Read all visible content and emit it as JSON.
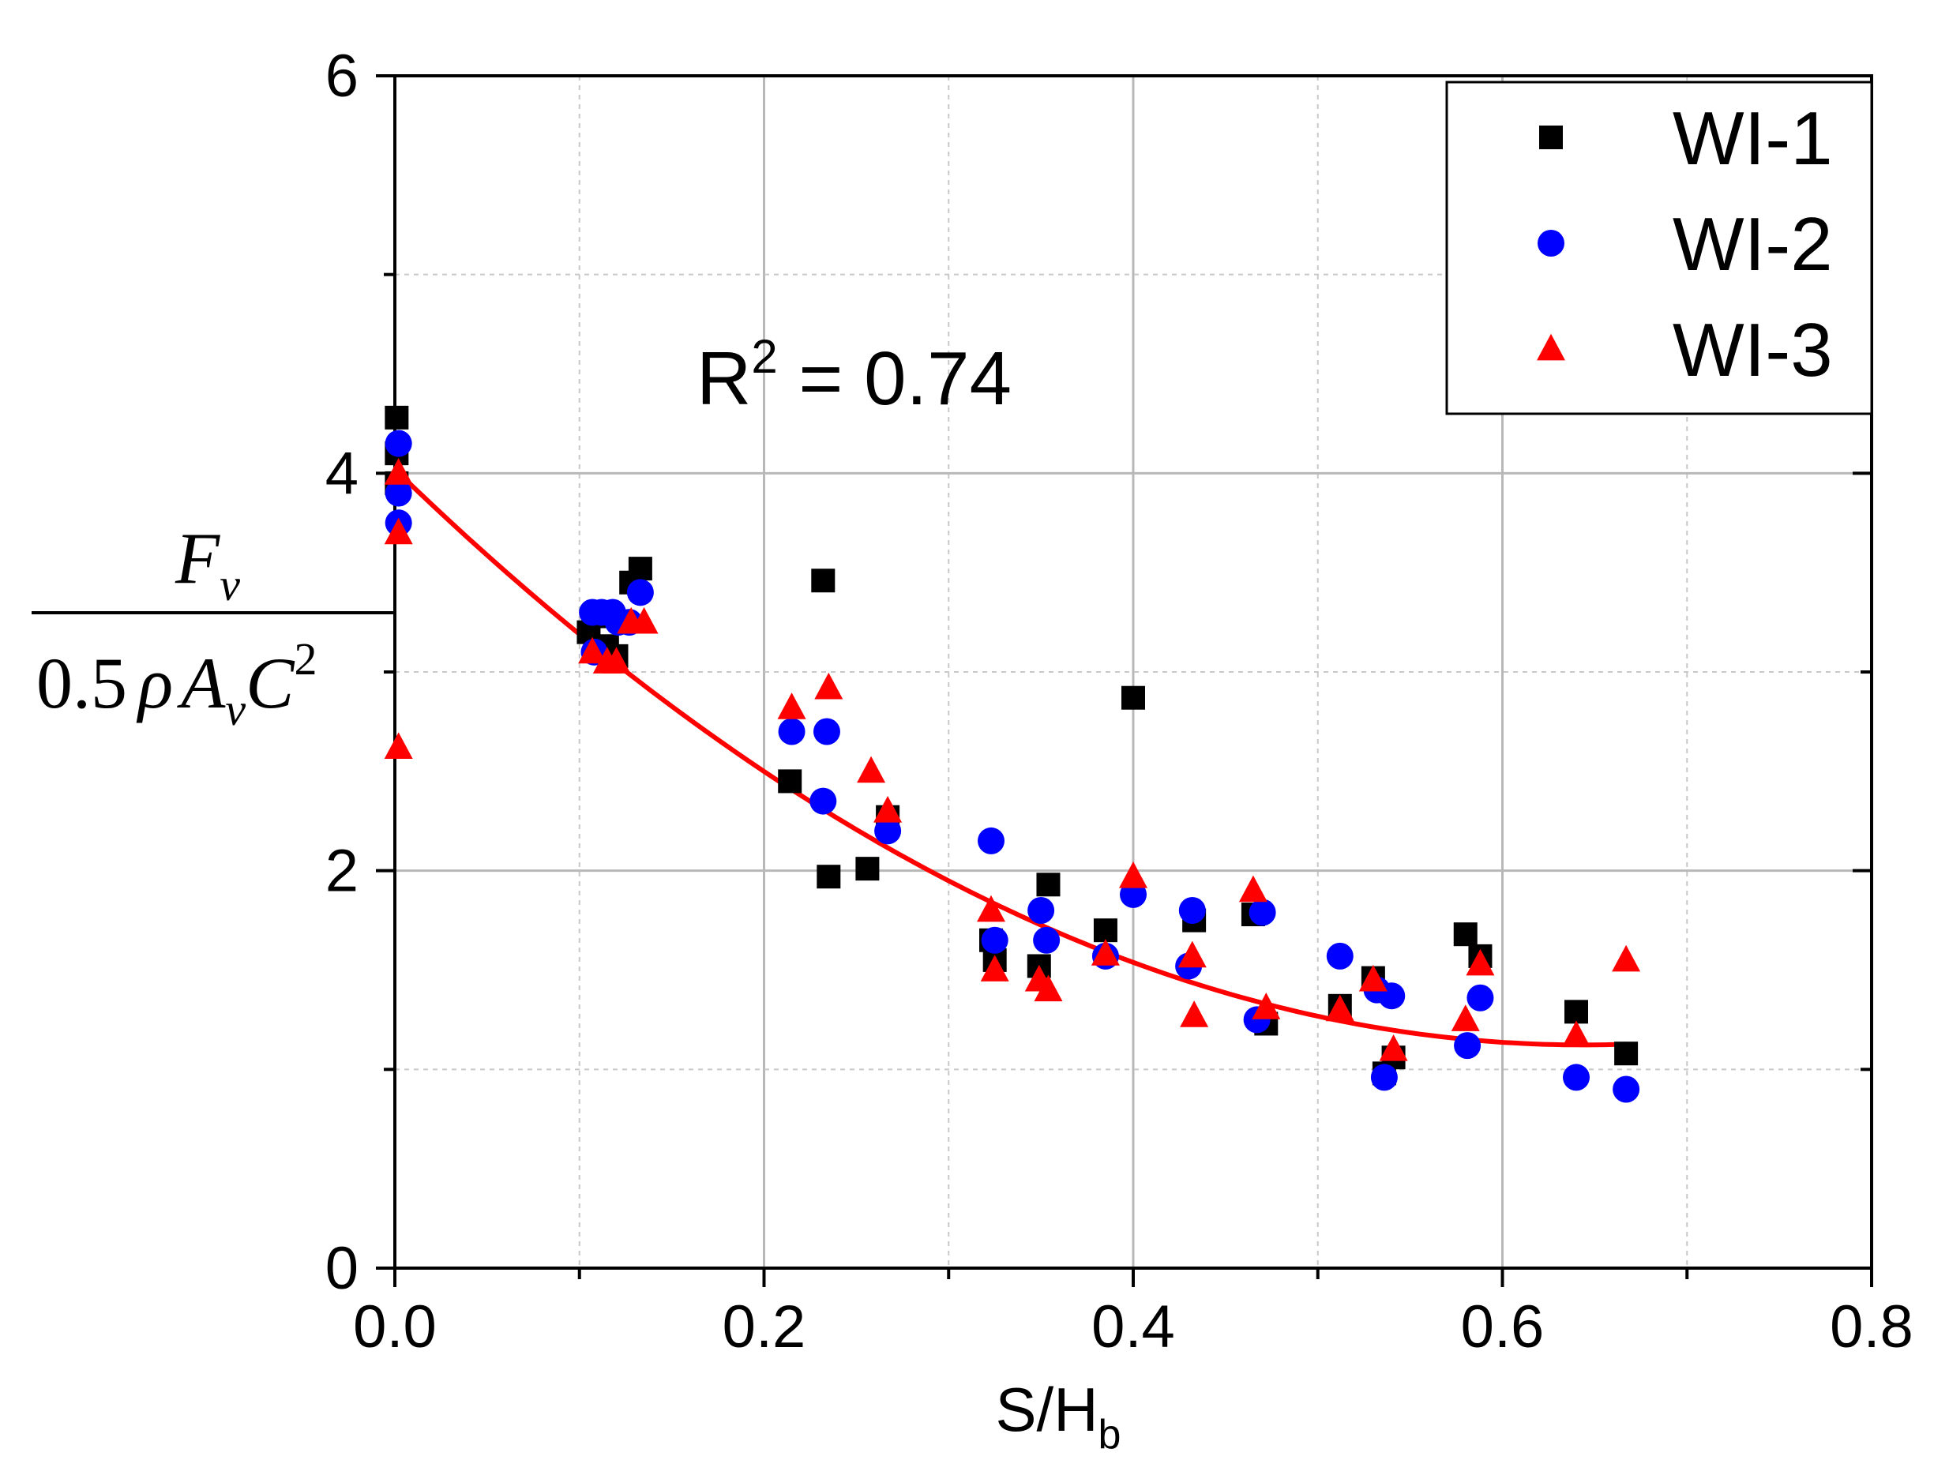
{
  "chart_data": {
    "type": "scatter",
    "xlabel_main": "S/H",
    "xlabel_sub": "b",
    "ylabel": {
      "numerator_main": "F",
      "numerator_sub": "v",
      "denominator_prefix": "0.5",
      "denominator_rho": "ρ",
      "denominator_A": "A",
      "denominator_A_sub": "v",
      "denominator_C": "C",
      "denominator_C_sup": "2"
    },
    "xlim": [
      0.0,
      0.8
    ],
    "ylim": [
      0,
      6
    ],
    "xticks": [
      0.0,
      0.2,
      0.4,
      0.6,
      0.8
    ],
    "xtick_labels": [
      "0.0",
      "0.2",
      "0.4",
      "0.6",
      "0.8"
    ],
    "xticks_minor": [
      0.1,
      0.3,
      0.5,
      0.7
    ],
    "yticks": [
      0,
      2,
      4,
      6
    ],
    "ytick_labels": [
      "0",
      "2",
      "4",
      "6"
    ],
    "yticks_minor": [
      1,
      3,
      5
    ],
    "grid": true,
    "legend_position": "top-right",
    "annotation": {
      "main": "R",
      "sup": "2",
      "rest": " = 0.74"
    },
    "series": [
      {
        "name": "WI-1",
        "marker": "square",
        "color": "#000000",
        "points": [
          [
            0.001,
            4.28
          ],
          [
            0.001,
            4.1
          ],
          [
            0.001,
            3.95
          ],
          [
            0.105,
            3.2
          ],
          [
            0.11,
            3.28
          ],
          [
            0.115,
            3.13
          ],
          [
            0.12,
            3.08
          ],
          [
            0.128,
            3.45
          ],
          [
            0.133,
            3.52
          ],
          [
            0.232,
            3.46
          ],
          [
            0.214,
            2.45
          ],
          [
            0.235,
            1.97
          ],
          [
            0.256,
            2.01
          ],
          [
            0.267,
            2.27
          ],
          [
            0.323,
            1.65
          ],
          [
            0.325,
            1.55
          ],
          [
            0.349,
            1.52
          ],
          [
            0.354,
            1.93
          ],
          [
            0.385,
            1.7
          ],
          [
            0.4,
            2.87
          ],
          [
            0.433,
            1.75
          ],
          [
            0.465,
            1.78
          ],
          [
            0.472,
            1.23
          ],
          [
            0.512,
            1.32
          ],
          [
            0.53,
            1.46
          ],
          [
            0.536,
            0.98
          ],
          [
            0.541,
            1.06
          ],
          [
            0.58,
            1.68
          ],
          [
            0.588,
            1.57
          ],
          [
            0.64,
            1.29
          ],
          [
            0.667,
            1.08
          ]
        ]
      },
      {
        "name": "WI-2",
        "marker": "circle",
        "color": "#0000ff",
        "points": [
          [
            0.002,
            4.15
          ],
          [
            0.002,
            3.9
          ],
          [
            0.002,
            3.75
          ],
          [
            0.107,
            3.3
          ],
          [
            0.108,
            3.1
          ],
          [
            0.112,
            3.3
          ],
          [
            0.118,
            3.3
          ],
          [
            0.121,
            3.25
          ],
          [
            0.127,
            3.25
          ],
          [
            0.133,
            3.4
          ],
          [
            0.215,
            2.7
          ],
          [
            0.234,
            2.7
          ],
          [
            0.232,
            2.35
          ],
          [
            0.267,
            2.2
          ],
          [
            0.323,
            2.15
          ],
          [
            0.325,
            1.65
          ],
          [
            0.35,
            1.8
          ],
          [
            0.353,
            1.65
          ],
          [
            0.385,
            1.57
          ],
          [
            0.4,
            1.88
          ],
          [
            0.43,
            1.52
          ],
          [
            0.432,
            1.8
          ],
          [
            0.467,
            1.25
          ],
          [
            0.47,
            1.79
          ],
          [
            0.512,
            1.57
          ],
          [
            0.532,
            1.4
          ],
          [
            0.54,
            1.37
          ],
          [
            0.536,
            0.96
          ],
          [
            0.581,
            1.12
          ],
          [
            0.588,
            1.36
          ],
          [
            0.64,
            0.96
          ],
          [
            0.667,
            0.9
          ]
        ]
      },
      {
        "name": "WI-3",
        "marker": "triangle",
        "color": "#ff0000",
        "points": [
          [
            0.002,
            4.0
          ],
          [
            0.002,
            3.7
          ],
          [
            0.002,
            2.62
          ],
          [
            0.107,
            3.1
          ],
          [
            0.115,
            3.05
          ],
          [
            0.12,
            3.05
          ],
          [
            0.128,
            3.25
          ],
          [
            0.135,
            3.25
          ],
          [
            0.215,
            2.82
          ],
          [
            0.235,
            2.92
          ],
          [
            0.258,
            2.5
          ],
          [
            0.267,
            2.3
          ],
          [
            0.323,
            1.8
          ],
          [
            0.325,
            1.5
          ],
          [
            0.349,
            1.45
          ],
          [
            0.354,
            1.4
          ],
          [
            0.385,
            1.58
          ],
          [
            0.4,
            1.97
          ],
          [
            0.433,
            1.27
          ],
          [
            0.432,
            1.57
          ],
          [
            0.465,
            1.9
          ],
          [
            0.472,
            1.31
          ],
          [
            0.512,
            1.3
          ],
          [
            0.53,
            1.45
          ],
          [
            0.541,
            1.1
          ],
          [
            0.58,
            1.25
          ],
          [
            0.588,
            1.53
          ],
          [
            0.64,
            1.17
          ],
          [
            0.667,
            1.55
          ]
        ]
      }
    ],
    "fit_curve": {
      "color": "#ff0000",
      "x_range": [
        0.0,
        0.667
      ],
      "coefficients": [
        4.02,
        -9.0,
        6.99
      ]
    }
  }
}
